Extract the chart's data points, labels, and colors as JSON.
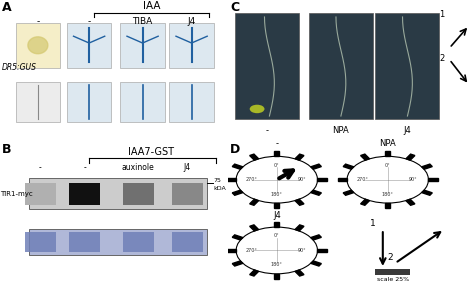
{
  "panel_A_label": "A",
  "panel_B_label": "B",
  "panel_C_label": "C",
  "panel_D_label": "D",
  "iaa_label": "IAA",
  "iaa7gst_label": "IAA7-GST",
  "tir1myc_label": "TIR1-myc",
  "dr5gus_label": "DR5:GUS",
  "col_labels_A": [
    "-",
    "-",
    "TIBA",
    "J4"
  ],
  "col_labels_B": [
    "-",
    "-",
    "auxinole",
    "J4"
  ],
  "row_labels_C": [
    "-",
    "NPA",
    "J4"
  ],
  "scale_label": "scale 25%",
  "bg_color": "#ffffff",
  "tick_angles": [
    0,
    30,
    60,
    90,
    120,
    150,
    180,
    210,
    240,
    270,
    300,
    330
  ],
  "top_img_colors": [
    "#f5eec8",
    "#dde8f0",
    "#dde8f0",
    "#dde8f0"
  ],
  "bot_img_colors": [
    "#ececec",
    "#dde8f0",
    "#dde8f0",
    "#dde8f0"
  ],
  "plant_dark_bg": "#2a3a45"
}
